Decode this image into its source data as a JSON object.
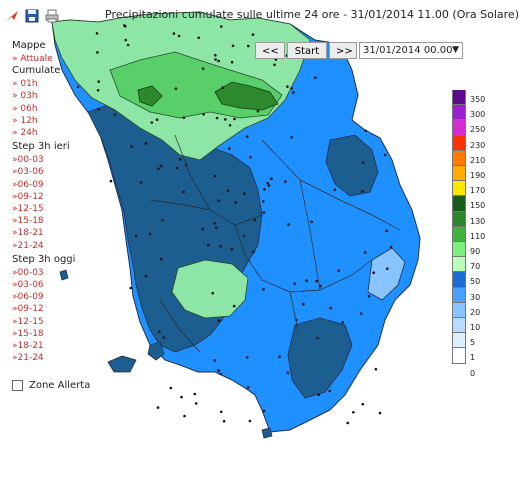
{
  "header": {
    "title": "Precipitazioni cumulate sulle ultime 24 ore - 31/01/2014 11.00 (Ora Solare)",
    "icons": [
      "arrow-icon",
      "save-icon",
      "print-icon"
    ]
  },
  "controls": {
    "prev_label": "<<",
    "start_label": "Start",
    "next_label": ">>",
    "date_value": "31/01/2014 00.00"
  },
  "menu": {
    "mappe_header": "Mappe",
    "attuale": "» Attuale",
    "cumulate_header": "Cumulate",
    "cumulate": [
      "» 01h",
      "» 03h",
      "» 06h",
      "» 12h",
      "» 24h"
    ],
    "step_ieri_header": "Step 3h ieri",
    "step_ieri": [
      "»00-03",
      "»03-06",
      "»06-09",
      "»09-12",
      "»12-15",
      "»15-18",
      "»18-21",
      "»21-24"
    ],
    "step_oggi_header": "Step 3h oggi",
    "step_oggi": [
      "»00-03",
      "»03-06",
      "»06-09",
      "»09-12",
      "»12-15",
      "»15-18",
      "»18-21",
      "»21-24"
    ],
    "zone_allerta": "Zone Allerta"
  },
  "legend": {
    "labels": [
      "350",
      "300",
      "250",
      "230",
      "210",
      "190",
      "170",
      "150",
      "130",
      "110",
      "90",
      "70",
      "50",
      "30",
      "20",
      "10",
      "5",
      "1",
      "0"
    ],
    "colors": [
      "#5b0a8e",
      "#9b1fd0",
      "#d42bd2",
      "#ff3300",
      "#ff7a00",
      "#ffab00",
      "#ffe800",
      "#1a5c1a",
      "#2d882d",
      "#3fb33f",
      "#7ff07f",
      "#b8ffb8",
      "#1c6cd6",
      "#4aa0ff",
      "#88c4ff",
      "#b8dcff",
      "#ddeeff",
      "#ffffff"
    ]
  },
  "map": {
    "colors": {
      "class_30_50": "#1e90ff",
      "class_50_70": "#1c5e8f",
      "class_70_90": "#8ee6a6",
      "class_90_110": "#58cf68",
      "class_110_130": "#2c8a2c",
      "class_20_30": "#88c4ff",
      "sea": "#ffffff",
      "boundary": "#333333"
    }
  }
}
